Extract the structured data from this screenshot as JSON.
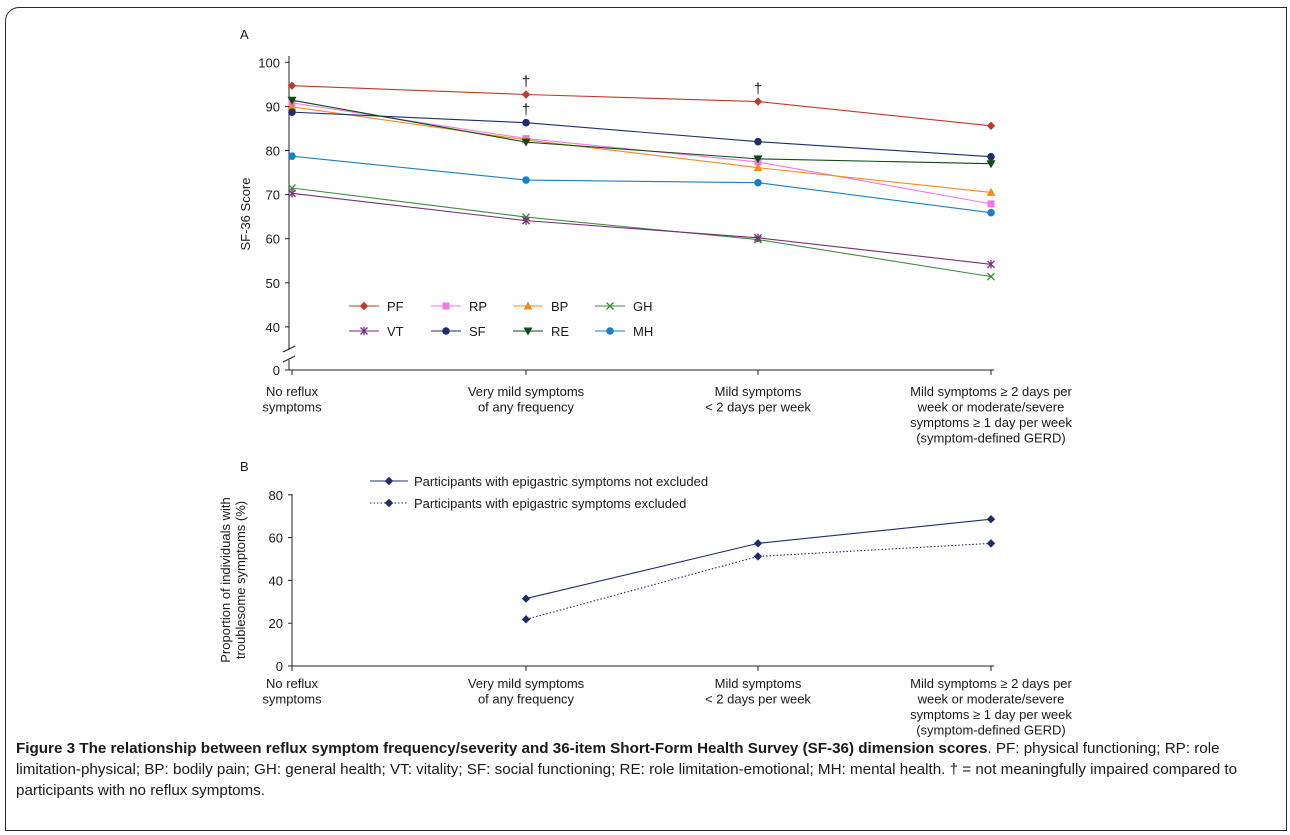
{
  "categories": [
    [
      "No reflux",
      "symptoms"
    ],
    [
      "Very mild symptoms",
      "of any frequency"
    ],
    [
      "Mild symptoms",
      "< 2 days per week"
    ],
    [
      "Mild symptoms ≥ 2 days per",
      "week or moderate/severe",
      "symptoms ≥ 1 day per week",
      "(symptom-defined GERD)"
    ]
  ],
  "chart_data": [
    {
      "type": "line",
      "panel": "A",
      "ylabel": "SF-36 Score",
      "y_ticks": [
        "0",
        "40",
        "50",
        "60",
        "70",
        "80",
        "90",
        "100"
      ],
      "ylim": [
        35,
        100
      ],
      "axis_break": true,
      "legend_position": "bottom-left",
      "series": [
        {
          "name": "PF",
          "color": "#c0392b",
          "marker": "diamond",
          "values": [
            94.7,
            92.7,
            91.1,
            85.6
          ]
        },
        {
          "name": "RP",
          "color": "#f477e6",
          "marker": "square",
          "values": [
            90.8,
            82.7,
            77.4,
            67.9
          ]
        },
        {
          "name": "BP",
          "color": "#f58a1f",
          "marker": "triangle",
          "values": [
            89.9,
            82.4,
            76.1,
            70.5
          ]
        },
        {
          "name": "GH",
          "color": "#3e8e3e",
          "marker": "x",
          "values": [
            71.5,
            64.9,
            59.8,
            51.4
          ]
        },
        {
          "name": "VT",
          "color": "#7a2e7a",
          "marker": "star",
          "values": [
            70.3,
            64.1,
            60.2,
            54.2
          ]
        },
        {
          "name": "SF",
          "color": "#1f2d6e",
          "marker": "circle",
          "values": [
            88.7,
            86.3,
            82.0,
            78.6
          ]
        },
        {
          "name": "RE",
          "color": "#0d4a14",
          "marker": "triangle-down",
          "values": [
            91.4,
            81.9,
            78.1,
            77.0
          ]
        },
        {
          "name": "MH",
          "color": "#1c7fc4",
          "marker": "circle",
          "values": [
            78.7,
            73.3,
            72.7,
            65.9
          ]
        }
      ],
      "annotations": [
        {
          "text": "†",
          "series": "PF",
          "category_index": 1
        },
        {
          "text": "†",
          "series": "SF",
          "category_index": 1
        },
        {
          "text": "†",
          "series": "PF",
          "category_index": 2
        }
      ]
    },
    {
      "type": "line",
      "panel": "B",
      "ylabel": [
        "Proportion of individuals with",
        "troublesome symptoms (%)"
      ],
      "y_ticks": [
        "0",
        "20",
        "40",
        "60",
        "80"
      ],
      "ylim": [
        0,
        80
      ],
      "legend_position": "top-left",
      "series": [
        {
          "name": "Participants with epigastric symptoms not excluded",
          "color": "#1f2d6e",
          "style": "solid",
          "values": [
            null,
            31.5,
            57.3,
            68.6
          ]
        },
        {
          "name": "Participants with epigastric symptoms excluded",
          "color": "#1f2d6e",
          "style": "dotted",
          "values": [
            null,
            21.8,
            51.2,
            57.3
          ]
        }
      ]
    }
  ],
  "panel_labels": [
    "A",
    "B"
  ],
  "caption": {
    "title": "Figure 3 The relationship between reflux symptom frequency/severity and 36-item Short-Form Health Survey (SF-36) dimension scores",
    "text": ". PF: physical functioning; RP: role limitation-physical; BP: bodily pain; GH: general health; VT: vitality; SF: social functioning; RE: role limitation-emotional; MH: mental health. † = not meaningfully impaired compared to participants with no reflux symptoms."
  }
}
